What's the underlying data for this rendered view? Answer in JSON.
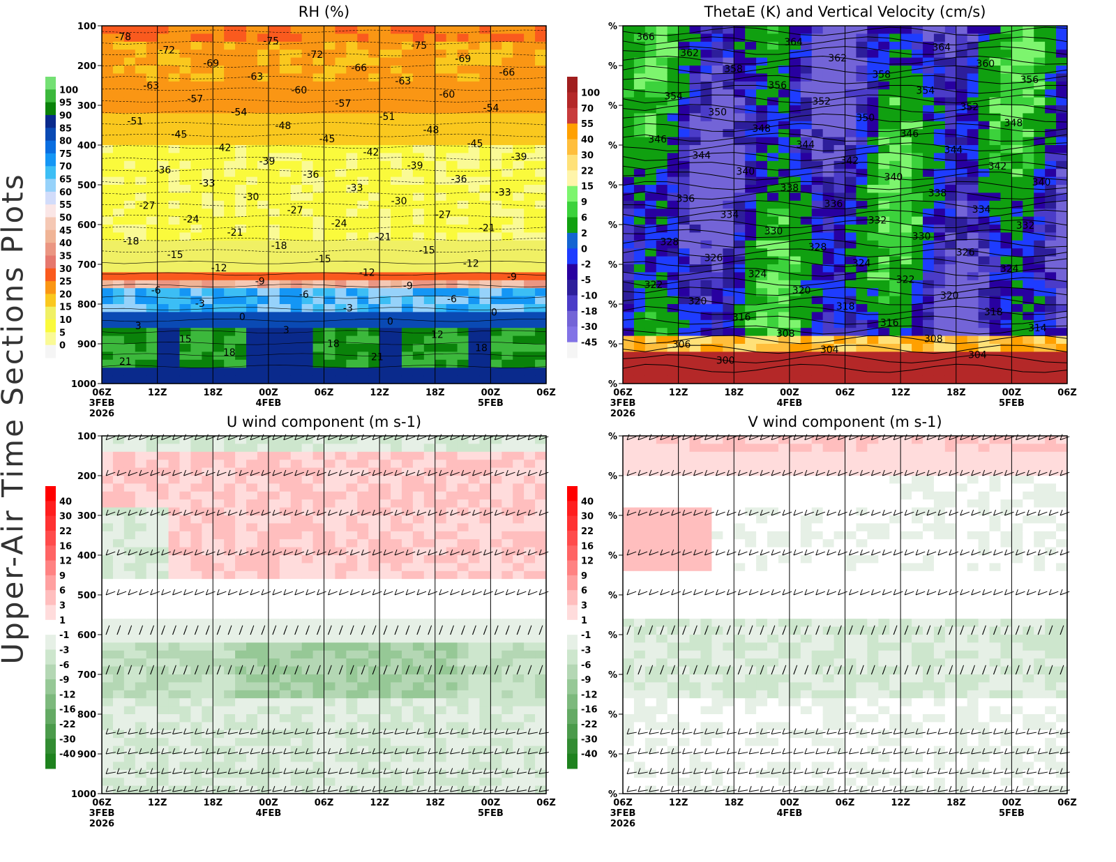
{
  "side_title": "Upper-Air Time Sections Plots",
  "chart_data": [
    {
      "type": "heatmap",
      "title": "RH (%)",
      "ytick_labels": [
        "100",
        "200",
        "300",
        "400",
        "500",
        "600",
        "700",
        "800",
        "900",
        "1000"
      ],
      "xtick_labels": [
        "06Z",
        "12Z",
        "18Z",
        "00Z",
        "06Z",
        "12Z",
        "18Z",
        "00Z",
        "06Z"
      ],
      "date_labels": {
        "start": "3FEB",
        "year": "2026",
        "d2": "4FEB",
        "d3": "5FEB"
      },
      "colorbar": {
        "labels": [
          "100",
          "95",
          "90",
          "85",
          "80",
          "75",
          "70",
          "65",
          "60",
          "55",
          "50",
          "45",
          "40",
          "35",
          "30",
          "25",
          "20",
          "15",
          "10",
          "5",
          "0"
        ],
        "colors": [
          "#74e074",
          "#3cb83c",
          "#0a820a",
          "#0a2a8c",
          "#0a4ab4",
          "#0a6ee0",
          "#1496f5",
          "#3cbef5",
          "#96d2fa",
          "#d2dcfa",
          "#fae6e6",
          "#f5c8b4",
          "#f0b496",
          "#eb9682",
          "#e6786e",
          "#fa5a1e",
          "#fa9614",
          "#fac81e",
          "#f0f064",
          "#fafa3c",
          "#fafa96",
          "#f5f5f5"
        ]
      },
      "contour_labels": [
        "-78",
        "-75",
        "-75",
        "-72",
        "-72",
        "-69",
        "-69",
        "-66",
        "-66",
        "-63",
        "-63",
        "-63",
        "-60",
        "-60",
        "-57",
        "-57",
        "-54",
        "-54",
        "-51",
        "-51",
        "-48",
        "-48",
        "-45",
        "-45",
        "-45",
        "-42",
        "-42",
        "-39",
        "-39",
        "-39",
        "-36",
        "-36",
        "-36",
        "-33",
        "-33",
        "-33",
        "-30",
        "-30",
        "-27",
        "-27",
        "-27",
        "-24",
        "-24",
        "-21",
        "-21",
        "-21",
        "-18",
        "-18",
        "-15",
        "-15",
        "-15",
        "-12",
        "-12",
        "-12",
        "-9",
        "-9",
        "-9",
        "-6",
        "-6",
        "-6",
        "-3",
        "-3",
        "0",
        "0",
        "0",
        "3",
        "3",
        "12",
        "15",
        "18",
        "18",
        "18",
        "21",
        "21"
      ]
    },
    {
      "type": "heatmap",
      "title": "ThetaE (K) and Vertical Velocity (cm/s)",
      "ytick_labels": [
        "%",
        "%",
        "%",
        "%",
        "%",
        "%",
        "%",
        "%",
        "%",
        "%"
      ],
      "xtick_labels": [
        "06Z",
        "12Z",
        "18Z",
        "00Z",
        "06Z",
        "12Z",
        "18Z",
        "00Z",
        "06Z"
      ],
      "date_labels": {
        "start": "3FEB",
        "year": "2026",
        "d2": "4FEB",
        "d3": "5FEB"
      },
      "colorbar": {
        "labels": [
          "100",
          "70",
          "55",
          "40",
          "30",
          "22",
          "15",
          "9",
          "6",
          "2",
          "0",
          "-2",
          "-5",
          "-10",
          "-18",
          "-30",
          "-45"
        ],
        "colors": [
          "#a01e1e",
          "#b42828",
          "#c83c3c",
          "#ffa000",
          "#ffbe3c",
          "#ffe178",
          "#fff5aa",
          "#7df56e",
          "#3cd23c",
          "#10a010",
          "#1464d2",
          "#1e3cff",
          "#2800a0",
          "#2d1e9b",
          "#4b3cc8",
          "#7364d7",
          "#8273e6",
          "#f5f5f5"
        ]
      },
      "contour_labels": [
        "366",
        "364",
        "364",
        "362",
        "362",
        "360",
        "358",
        "358",
        "356",
        "356",
        "354",
        "354",
        "352",
        "352",
        "350",
        "350",
        "348",
        "348",
        "346",
        "346",
        "344",
        "344",
        "344",
        "342",
        "342",
        "340",
        "340",
        "340",
        "338",
        "338",
        "336",
        "336",
        "334",
        "334",
        "332",
        "332",
        "330",
        "330",
        "328",
        "328",
        "326",
        "326",
        "324",
        "324",
        "324",
        "322",
        "322",
        "320",
        "320",
        "320",
        "318",
        "318",
        "316",
        "316",
        "314",
        "308",
        "308",
        "306",
        "304",
        "304",
        "300"
      ]
    },
    {
      "type": "heatmap",
      "title": "U wind component (m s-1)",
      "ytick_labels": [
        "100",
        "200",
        "300",
        "400",
        "500",
        "600",
        "700",
        "800",
        "900",
        "1000"
      ],
      "xtick_labels": [
        "06Z",
        "12Z",
        "18Z",
        "00Z",
        "06Z",
        "12Z",
        "18Z",
        "00Z",
        "06Z"
      ],
      "date_labels": {
        "start": "3FEB",
        "year": "2026",
        "d2": "4FEB",
        "d3": "5FEB"
      },
      "colorbar": {
        "labels": [
          "40",
          "30",
          "22",
          "16",
          "12",
          "9",
          "6",
          "3",
          "1",
          "-1",
          "-3",
          "-6",
          "-9",
          "-12",
          "-16",
          "-22",
          "-30",
          "-40"
        ],
        "colors": [
          "#ff0000",
          "#ff1e1e",
          "#ff3232",
          "#ff4b4b",
          "#ff6464",
          "#ff8282",
          "#ffa0a0",
          "#ffbebe",
          "#ffdcdc",
          "#ffffff",
          "#e6f0e6",
          "#cde6cd",
          "#b4d7b4",
          "#96c896",
          "#7db97d",
          "#64aa64",
          "#4b9b4b",
          "#328c32",
          "#1e821e"
        ]
      }
    },
    {
      "type": "heatmap",
      "title": "V wind component (m s-1)",
      "ytick_labels": [
        "%",
        "%",
        "%",
        "%",
        "%",
        "%",
        "%",
        "%",
        "%",
        "%"
      ],
      "xtick_labels": [
        "06Z",
        "12Z",
        "18Z",
        "00Z",
        "06Z",
        "12Z",
        "18Z",
        "00Z",
        "06Z"
      ],
      "date_labels": {
        "start": "3FEB",
        "year": "2026",
        "d2": "4FEB",
        "d3": "5FEB"
      },
      "colorbar": {
        "labels": [
          "40",
          "30",
          "22",
          "16",
          "12",
          "9",
          "6",
          "3",
          "1",
          "-1",
          "-3",
          "-6",
          "-9",
          "-12",
          "-16",
          "-22",
          "-30",
          "-40"
        ],
        "colors": [
          "#ff0000",
          "#ff1e1e",
          "#ff3232",
          "#ff4b4b",
          "#ff6464",
          "#ff8282",
          "#ffa0a0",
          "#ffbebe",
          "#ffdcdc",
          "#ffffff",
          "#e6f0e6",
          "#cde6cd",
          "#b4d7b4",
          "#96c896",
          "#7db97d",
          "#64aa64",
          "#4b9b4b",
          "#328c32",
          "#1e821e"
        ]
      }
    }
  ]
}
